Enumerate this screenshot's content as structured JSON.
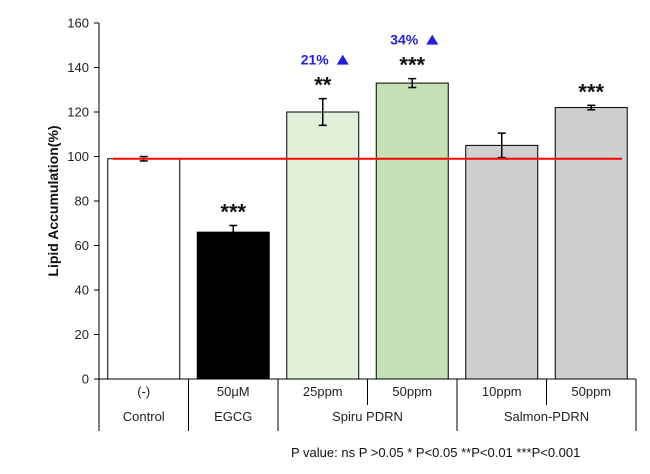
{
  "chart_data": {
    "type": "bar",
    "ylabel": "Lipid Accumulation(%)",
    "ylim": [
      0,
      160
    ],
    "yticks": [
      0,
      20,
      40,
      60,
      80,
      100,
      120,
      140,
      160
    ],
    "reference_line": {
      "value": 99,
      "color": "#ff0000"
    },
    "bars": [
      {
        "dose": "(-)",
        "value": 99,
        "error": 1,
        "color": "#ffffff",
        "sig": "",
        "increase": ""
      },
      {
        "dose": "50μM",
        "value": 66,
        "error": 3,
        "color": "#000000",
        "sig": "***",
        "increase": ""
      },
      {
        "dose": "25ppm",
        "value": 120,
        "error": 6,
        "color": "#e2efd9",
        "sig": "**",
        "increase": "21%"
      },
      {
        "dose": "50ppm",
        "value": 133,
        "error": 2,
        "color": "#c5e0b3",
        "sig": "***",
        "increase": "34%"
      },
      {
        "dose": "10ppm",
        "value": 105,
        "error": 5.5,
        "color": "#d0cece",
        "sig": "",
        "increase": ""
      },
      {
        "dose": "50ppm",
        "value": 122,
        "error": 1,
        "color": "#d0cece",
        "sig": "***",
        "increase": ""
      }
    ],
    "groups": [
      {
        "label": "Control",
        "span": 1
      },
      {
        "label": "EGCG",
        "span": 1
      },
      {
        "label": "Spiru PDRN",
        "span": 2
      },
      {
        "label": "Salmon-PDRN",
        "span": 2
      }
    ],
    "increase_color": "#1f1fdd"
  },
  "footnote": "P value: ns P >0.05 * P<0.05 **P<0.01 ***P<0.001"
}
